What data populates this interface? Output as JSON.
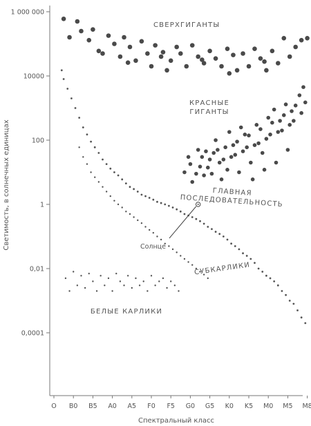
{
  "chart_data": {
    "type": "scatter",
    "title": "",
    "xlabel": "Спектральный класс",
    "ylabel": "Светимость, в солнечных единицах",
    "x_categories": [
      "O",
      "B0",
      "B5",
      "A0",
      "A5",
      "F0",
      "F5",
      "G0",
      "G5",
      "K0",
      "K5",
      "M0",
      "M5",
      "M8"
    ],
    "y_ticks": [
      {
        "value": 1000000,
        "label": "1 000 000"
      },
      {
        "value": 10000,
        "label": "10000"
      },
      {
        "value": 100,
        "label": "100"
      },
      {
        "value": 1,
        "label": "1"
      },
      {
        "value": 0.01,
        "label": "0,01"
      },
      {
        "value": 0.0001,
        "label": "0,0001"
      }
    ],
    "y_scale": "log",
    "ylim": [
      5e-07,
      5000000
    ],
    "grid": false,
    "regions": [
      {
        "name": "supergiants",
        "label_lines": [
          "СВЕРХГИГАНТЫ"
        ]
      },
      {
        "name": "red-giants",
        "label_lines": [
          "КРАСНЫЕ",
          "ГИГАНТЫ"
        ]
      },
      {
        "name": "main-sequence",
        "label_lines": [
          "ГЛАВНАЯ",
          "ПОСЛЕДОВАТЕЛЬНОСТЬ"
        ]
      },
      {
        "name": "subdwarfs",
        "label_lines": [
          "СУБКАРЛИКИ"
        ]
      },
      {
        "name": "white-dwarfs",
        "label_lines": [
          "БЕЛЫЕ КАРЛИКИ"
        ]
      }
    ],
    "sun": {
      "label": "Солнце",
      "x": "G2",
      "y": 1
    },
    "series": [
      {
        "name": "",
        "region": "supergiants",
        "points": [
          [
            0.5,
            600000
          ],
          [
            0.8,
            160000
          ],
          [
            1.2,
            500000
          ],
          [
            1.4,
            250000
          ],
          [
            1.8,
            130000
          ],
          [
            2.0,
            280000
          ],
          [
            2.3,
            60000
          ],
          [
            2.5,
            50000
          ],
          [
            2.8,
            180000
          ],
          [
            3.1,
            100000
          ],
          [
            3.4,
            40000
          ],
          [
            3.6,
            160000
          ],
          [
            3.9,
            80000
          ],
          [
            4.2,
            30000
          ],
          [
            4.5,
            120000
          ],
          [
            4.8,
            50000
          ],
          [
            5.0,
            20000
          ],
          [
            5.2,
            90000
          ],
          [
            5.5,
            40000
          ],
          [
            5.8,
            15000
          ],
          [
            6.0,
            30000
          ],
          [
            6.3,
            80000
          ],
          [
            6.5,
            50000
          ],
          [
            6.8,
            20000
          ],
          [
            7.1,
            90000
          ],
          [
            7.4,
            40000
          ],
          [
            7.7,
            25000
          ],
          [
            8.0,
            60000
          ],
          [
            8.3,
            35000
          ],
          [
            8.6,
            20000
          ],
          [
            8.9,
            70000
          ],
          [
            9.2,
            45000
          ],
          [
            9.4,
            15000
          ],
          [
            9.7,
            50000
          ],
          [
            10.0,
            20000
          ],
          [
            10.3,
            70000
          ],
          [
            10.6,
            35000
          ],
          [
            10.9,
            15000
          ],
          [
            11.2,
            60000
          ],
          [
            11.5,
            25000
          ],
          [
            11.8,
            150000
          ],
          [
            12.1,
            40000
          ],
          [
            12.4,
            80000
          ],
          [
            12.7,
            130000
          ],
          [
            13.0,
            150000
          ],
          [
            10.8,
            28000
          ],
          [
            9.0,
            12000
          ],
          [
            7.6,
            32000
          ],
          [
            5.6,
            55000
          ],
          [
            3.8,
            26000
          ]
        ]
      },
      {
        "name": "",
        "region": "red-giants",
        "points": [
          [
            7.0,
            18
          ],
          [
            7.3,
            9
          ],
          [
            7.6,
            30
          ],
          [
            7.9,
            14
          ],
          [
            8.2,
            40
          ],
          [
            8.5,
            20
          ],
          [
            8.8,
            60
          ],
          [
            9.1,
            30
          ],
          [
            9.4,
            90
          ],
          [
            9.7,
            45
          ],
          [
            10.0,
            140
          ],
          [
            10.3,
            70
          ],
          [
            10.6,
            220
          ],
          [
            10.9,
            110
          ],
          [
            11.2,
            350
          ],
          [
            11.5,
            180
          ],
          [
            11.8,
            600
          ],
          [
            12.1,
            300
          ],
          [
            12.4,
            1200
          ],
          [
            12.6,
            2500
          ],
          [
            12.8,
            4500
          ],
          [
            12.9,
            1500
          ],
          [
            12.2,
            800
          ],
          [
            11.9,
            1300
          ],
          [
            11.6,
            400
          ],
          [
            11.3,
            900
          ],
          [
            11.0,
            500
          ],
          [
            10.7,
            40
          ],
          [
            10.4,
            300
          ],
          [
            10.1,
            20
          ],
          [
            9.8,
            150
          ],
          [
            9.5,
            10
          ],
          [
            9.2,
            70
          ],
          [
            8.9,
            12
          ],
          [
            8.6,
            6
          ],
          [
            8.3,
            100
          ],
          [
            8.0,
            25
          ],
          [
            7.7,
            8
          ],
          [
            7.4,
            50
          ],
          [
            7.1,
            5
          ],
          [
            6.9,
            30
          ],
          [
            6.7,
            10
          ],
          [
            7.5,
            15
          ],
          [
            8.1,
            9
          ],
          [
            8.7,
            25
          ],
          [
            9.3,
            35
          ],
          [
            9.9,
            60
          ],
          [
            10.5,
            80
          ],
          [
            11.1,
            150
          ],
          [
            11.7,
            200
          ],
          [
            12.3,
            400
          ],
          [
            12.7,
            700
          ],
          [
            10.2,
            6
          ],
          [
            10.8,
            12
          ],
          [
            11.4,
            20
          ],
          [
            12.0,
            50
          ],
          [
            9.0,
            180
          ],
          [
            9.6,
            250
          ],
          [
            8.4,
            50
          ],
          [
            7.8,
            45
          ]
        ]
      },
      {
        "name": "",
        "region": "main-sequence",
        "points": [
          [
            0.4,
            15000
          ],
          [
            0.5,
            8000
          ],
          [
            0.7,
            4000
          ],
          [
            0.9,
            2000
          ],
          [
            1.1,
            1000
          ],
          [
            1.3,
            500
          ],
          [
            1.5,
            250
          ],
          [
            1.7,
            150
          ],
          [
            1.9,
            90
          ],
          [
            2.1,
            60
          ],
          [
            2.3,
            40
          ],
          [
            2.5,
            25
          ],
          [
            2.7,
            18
          ],
          [
            2.9,
            13
          ],
          [
            3.1,
            10
          ],
          [
            3.3,
            8
          ],
          [
            3.5,
            6
          ],
          [
            3.7,
            4.5
          ],
          [
            3.9,
            3.5
          ],
          [
            4.1,
            3
          ],
          [
            4.3,
            2.5
          ],
          [
            4.5,
            2
          ],
          [
            4.7,
            1.8
          ],
          [
            4.9,
            1.6
          ],
          [
            5.1,
            1.4
          ],
          [
            5.3,
            1.2
          ],
          [
            5.5,
            1.1
          ],
          [
            5.7,
            1.0
          ],
          [
            5.9,
            0.9
          ],
          [
            6.1,
            0.8
          ],
          [
            6.3,
            0.7
          ],
          [
            6.5,
            0.6
          ],
          [
            6.7,
            0.5
          ],
          [
            6.9,
            0.45
          ],
          [
            7.1,
            0.4
          ],
          [
            7.3,
            0.35
          ],
          [
            7.5,
            0.3
          ],
          [
            7.7,
            0.25
          ],
          [
            7.9,
            0.2
          ],
          [
            8.1,
            0.17
          ],
          [
            8.3,
            0.14
          ],
          [
            8.5,
            0.12
          ],
          [
            8.7,
            0.1
          ],
          [
            8.9,
            0.08
          ],
          [
            9.1,
            0.06
          ],
          [
            9.3,
            0.05
          ],
          [
            9.5,
            0.04
          ],
          [
            9.7,
            0.03
          ],
          [
            9.9,
            0.025
          ],
          [
            10.1,
            0.02
          ],
          [
            10.3,
            0.015
          ],
          [
            10.5,
            0.01
          ],
          [
            10.7,
            0.008
          ],
          [
            10.9,
            0.006
          ],
          [
            11.1,
            0.005
          ],
          [
            11.3,
            0.004
          ],
          [
            11.5,
            0.003
          ],
          [
            11.7,
            0.002
          ],
          [
            11.9,
            0.0015
          ],
          [
            12.1,
            0.001
          ],
          [
            12.3,
            0.0008
          ],
          [
            12.5,
            0.0005
          ],
          [
            12.7,
            0.0003
          ],
          [
            12.9,
            0.0002
          ]
        ]
      },
      {
        "name": "",
        "region": "subdwarfs",
        "points": [
          [
            1.3,
            60
          ],
          [
            1.5,
            30
          ],
          [
            1.7,
            18
          ],
          [
            1.9,
            10
          ],
          [
            2.1,
            7
          ],
          [
            2.3,
            5
          ],
          [
            2.5,
            3.5
          ],
          [
            2.7,
            2.5
          ],
          [
            2.9,
            1.8
          ],
          [
            3.1,
            1.3
          ],
          [
            3.3,
            1
          ],
          [
            3.5,
            0.8
          ],
          [
            3.7,
            0.6
          ],
          [
            3.9,
            0.5
          ],
          [
            4.1,
            0.4
          ],
          [
            4.3,
            0.32
          ],
          [
            4.5,
            0.26
          ],
          [
            4.7,
            0.2
          ],
          [
            4.9,
            0.16
          ],
          [
            5.1,
            0.13
          ],
          [
            5.3,
            0.1
          ],
          [
            5.5,
            0.08
          ],
          [
            5.7,
            0.06
          ],
          [
            5.9,
            0.05
          ],
          [
            6.1,
            0.04
          ],
          [
            6.3,
            0.032
          ],
          [
            6.5,
            0.025
          ],
          [
            6.7,
            0.02
          ],
          [
            6.9,
            0.016
          ],
          [
            7.1,
            0.013
          ],
          [
            7.3,
            0.01
          ],
          [
            7.5,
            0.008
          ],
          [
            7.7,
            0.0065
          ],
          [
            7.9,
            0.005
          ]
        ]
      },
      {
        "name": "",
        "region": "white-dwarfs",
        "points": [
          [
            0.6,
            0.005
          ],
          [
            0.8,
            0.002
          ],
          [
            1.0,
            0.008
          ],
          [
            1.2,
            0.003
          ],
          [
            1.4,
            0.006
          ],
          [
            1.6,
            0.0025
          ],
          [
            1.8,
            0.007
          ],
          [
            2.0,
            0.004
          ],
          [
            2.2,
            0.002
          ],
          [
            2.4,
            0.006
          ],
          [
            2.6,
            0.003
          ],
          [
            2.8,
            0.005
          ],
          [
            3.0,
            0.002
          ],
          [
            3.2,
            0.007
          ],
          [
            3.4,
            0.004
          ],
          [
            3.6,
            0.003
          ],
          [
            3.8,
            0.006
          ],
          [
            4.0,
            0.0025
          ],
          [
            4.2,
            0.005
          ],
          [
            4.4,
            0.003
          ],
          [
            4.6,
            0.004
          ],
          [
            4.8,
            0.002
          ],
          [
            5.0,
            0.006
          ],
          [
            5.2,
            0.003
          ],
          [
            5.4,
            0.004
          ],
          [
            5.6,
            0.005
          ],
          [
            5.8,
            0.0025
          ],
          [
            6.0,
            0.004
          ],
          [
            6.2,
            0.003
          ],
          [
            6.4,
            0.002
          ]
        ]
      }
    ]
  }
}
